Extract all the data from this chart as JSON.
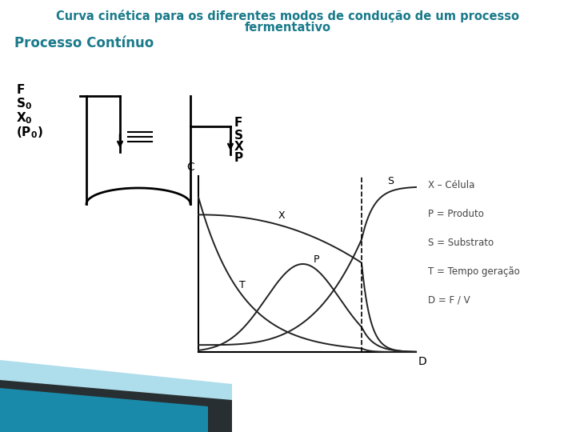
{
  "title_line1": "Curva cinética para os diferentes modos de condução de um processo",
  "title_line2": "fermentativo",
  "title_color": "#1a7a8a",
  "subtitle": "Processo Contínuo",
  "subtitle_color": "#1a7a8a",
  "bg_color": "#ffffff",
  "legend_items": [
    "X – Célula",
    "P = Produto",
    "S = Substrato",
    "T = Tempo geração",
    "D = F / V"
  ],
  "curve_color": "#222222",
  "teal_color": "#1a8aaa",
  "teal_dark": "#0d4a5a",
  "teal_light": "#a0d8e8"
}
